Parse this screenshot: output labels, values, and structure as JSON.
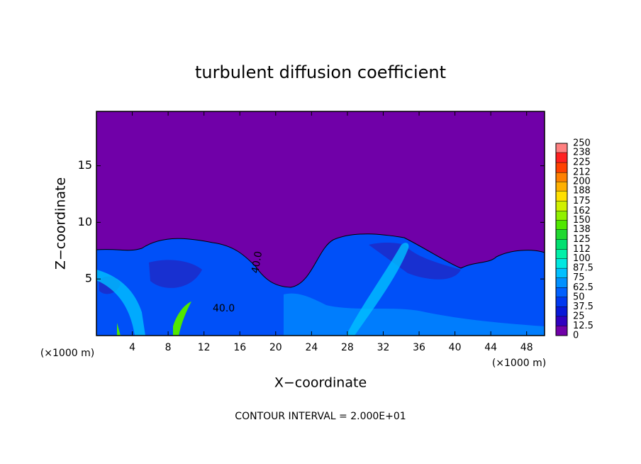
{
  "chart_data": {
    "type": "contour",
    "title": "turbulent diffusion coefficient",
    "xlabel": "X−coordinate",
    "ylabel": "Z−coordinate",
    "x_unit": "(×1000 m)",
    "footer": "CONTOUR INTERVAL = 2.000E+01",
    "contour_label": "40.0",
    "xlim": [
      0,
      50
    ],
    "ylim": [
      0,
      19.8
    ],
    "xticks": [
      4,
      8,
      12,
      16,
      20,
      24,
      28,
      32,
      36,
      40,
      44,
      48
    ],
    "yticks": [
      5,
      10,
      15
    ],
    "colorbar": {
      "lim": [
        0,
        250
      ],
      "ticks": [
        0,
        12.5,
        25,
        37.5,
        50,
        62.5,
        75,
        87.5,
        100,
        112,
        125,
        138,
        150,
        162,
        175,
        188,
        200,
        212,
        225,
        238,
        250
      ],
      "colors": [
        "#7000a8",
        "#3000c0",
        "#0818d8",
        "#0038f0",
        "#0060ff",
        "#0090ff",
        "#00c0ff",
        "#00e8e0",
        "#00f0a8",
        "#00e070",
        "#20d830",
        "#50e800",
        "#90f000",
        "#d0f000",
        "#ffe000",
        "#ffb000",
        "#ff8000",
        "#ff4000",
        "#ff2020",
        "#ff8080"
      ]
    }
  }
}
